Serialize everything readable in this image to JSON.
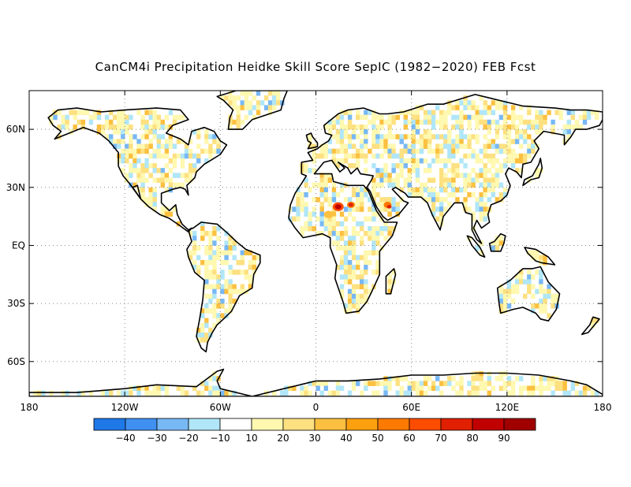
{
  "title": "CanCM4i Precipitation Heidke Skill Score SepIC (1982−2020) FEB Fcst",
  "map": {
    "lon_ticks": [
      {
        "value": -180,
        "label": "180"
      },
      {
        "value": -120,
        "label": "120W"
      },
      {
        "value": -60,
        "label": "60W"
      },
      {
        "value": 0,
        "label": "0"
      },
      {
        "value": 60,
        "label": "60E"
      },
      {
        "value": 120,
        "label": "120E"
      },
      {
        "value": 180,
        "label": "180"
      }
    ],
    "lat_ticks": [
      {
        "value": 60,
        "label": "60N"
      },
      {
        "value": 30,
        "label": "30N"
      },
      {
        "value": 0,
        "label": "EQ"
      },
      {
        "value": -30,
        "label": "30S"
      },
      {
        "value": -60,
        "label": "60S"
      }
    ],
    "lon_range": [
      -180,
      180
    ],
    "lat_range": [
      -78,
      80
    ],
    "grid": "dotted"
  },
  "colorbar": {
    "colors": [
      "#1f78e8",
      "#3f90f0",
      "#78b8f5",
      "#b0e6f8",
      "#ffffff",
      "#fff8b0",
      "#fde080",
      "#fcc040",
      "#fca010",
      "#fc7a00",
      "#fc4c00",
      "#e02000",
      "#c00000",
      "#a00000"
    ],
    "labels": [
      "−40",
      "−30",
      "−20",
      "−10",
      "10",
      "20",
      "30",
      "40",
      "50",
      "60",
      "70",
      "80",
      "90"
    ]
  }
}
